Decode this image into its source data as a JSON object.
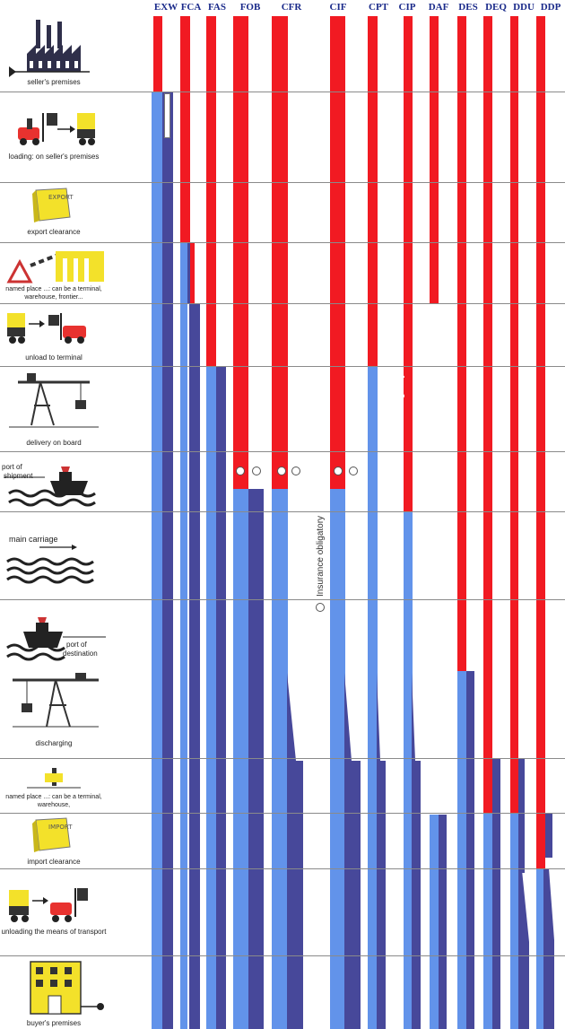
{
  "terms": [
    "EXW",
    "FCA",
    "FAS",
    "FOB",
    "CFR",
    "CIF",
    "CPT",
    "CIP",
    "DAF",
    "DES",
    "DEQ",
    "DDU",
    "DDP"
  ],
  "stages": [
    {
      "label": "seller's premises",
      "icon": "factory-icon"
    },
    {
      "label": "loading: on seller's premises",
      "icon": "truck-loading-icon"
    },
    {
      "label": "export clearance",
      "icon": "export-document-icon"
    },
    {
      "label": "named place ...: can be a terminal, warehouse, frontier...",
      "icon": "frontier-gate-icon"
    },
    {
      "label": "unload to terminal",
      "icon": "truck-unload-icon"
    },
    {
      "label": "delivery on board",
      "icon": "crane-icon"
    },
    {
      "label": "port of shipment",
      "icon": "ship-icon"
    },
    {
      "label": "main carriage",
      "icon": "waves-icon"
    },
    {
      "label": "port of destination",
      "icon": "ship-destination-icon"
    },
    {
      "label": "discharging",
      "icon": "discharge-crane-icon"
    },
    {
      "label": "named place ...: can be a terminal, warehouse,",
      "icon": "named-place-icon"
    },
    {
      "label": "import clearance",
      "icon": "import-document-icon"
    },
    {
      "label": "unloading the means of transport",
      "icon": "truck-forklift-icon"
    },
    {
      "label": "buyer's premises",
      "icon": "buyer-building-icon"
    }
  ],
  "annotations": {
    "insurance_cip": "Insurance obligatory",
    "insurance_cif": "Insurance obligatory",
    "port_of": "port of",
    "shipment": "shipment",
    "destination": "destination"
  },
  "icons": {
    "export_text": "EXPORT",
    "import_text": "IMPORT"
  },
  "colors": {
    "seller_cost": "#f11a22",
    "buyer_risk": "#6293ea",
    "buyer_cost": "#47489a"
  }
}
